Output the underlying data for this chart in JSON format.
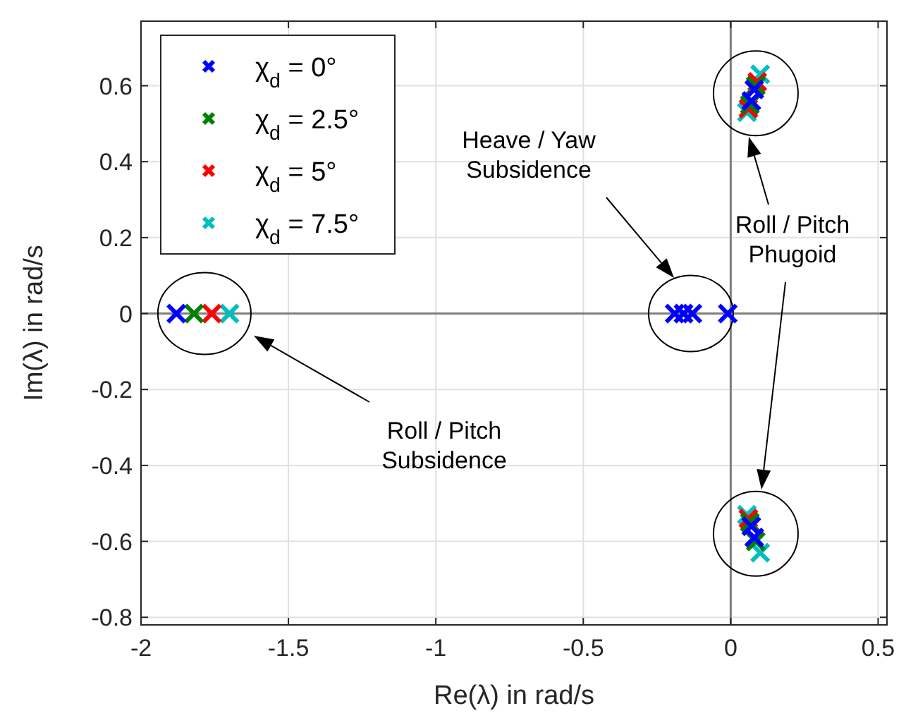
{
  "chart_data": {
    "type": "scatter",
    "xlabel": "Re(λ) in rad/s",
    "ylabel": "Im(λ) in rad/s",
    "xlim": [
      -2,
      0.53
    ],
    "ylim": [
      -0.82,
      0.77
    ],
    "xticks": [
      -2,
      -1.5,
      -1,
      -0.5,
      0,
      0.5
    ],
    "yticks": [
      -0.8,
      -0.6,
      -0.4,
      -0.2,
      0,
      0.2,
      0.4,
      0.6
    ],
    "grid": true,
    "legend": "top left",
    "marker": "cross",
    "series": [
      {
        "name": "χ$_{d}$ = 0°",
        "color": "#0000ff",
        "x": [
          -1.88,
          -0.19,
          -0.16,
          -0.13,
          -0.01,
          0.07,
          0.08,
          0.07,
          0.08
        ],
        "values": [
          0,
          0,
          0,
          0,
          0,
          0.56,
          0.59,
          -0.56,
          -0.59
        ]
      },
      {
        "name": "χ$_{d}$ = 2.5°",
        "color": "#008000",
        "x": [
          -1.82,
          0.065,
          0.085,
          0.065,
          0.085
        ],
        "values": [
          0,
          0.55,
          0.6,
          -0.55,
          -0.6
        ]
      },
      {
        "name": "χ$_{d}$ = 5°",
        "color": "#ff0000",
        "x": [
          -1.76,
          0.06,
          0.09,
          0.06
        ],
        "values": [
          0,
          0.54,
          0.61,
          -0.54
        ]
      },
      {
        "name": "χ$_{d}$ = 7.5°",
        "color": "#00bfbf",
        "x": [
          -1.7,
          0.055,
          0.1,
          0.055,
          0.1
        ],
        "values": [
          0,
          0.53,
          0.63,
          -0.53,
          -0.63
        ]
      }
    ],
    "annotations": [
      "Heave / Yaw\nSubsidence",
      "Roll / Pitch\nPhugoid",
      "Roll / Pitch\nSubsidence"
    ]
  }
}
